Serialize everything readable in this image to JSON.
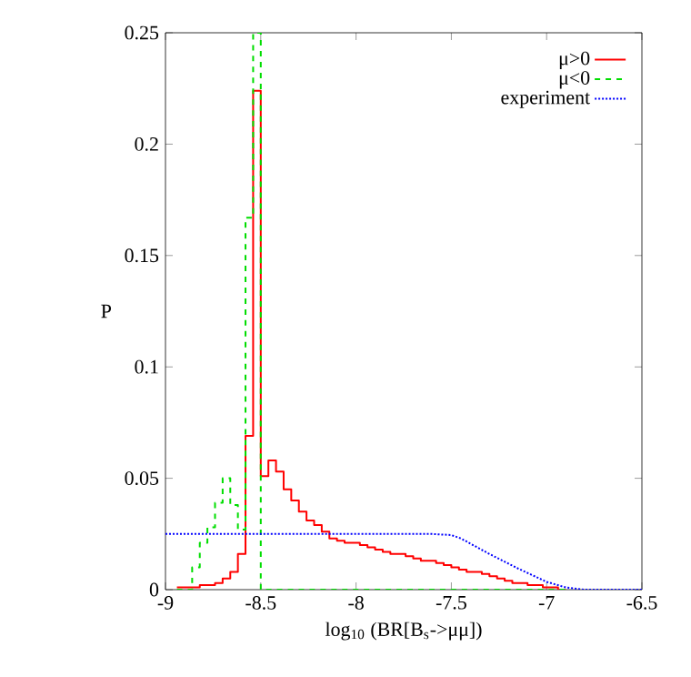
{
  "chart_data": {
    "type": "histogram",
    "xlabel": "log$_{10}$ (BR[B$_{s}$->μμ])",
    "ylabel": "P",
    "xlim": [
      -9,
      -6.5
    ],
    "ylim": [
      0,
      0.25
    ],
    "xticks": [
      -9,
      -8.5,
      -8,
      -7.5,
      -7,
      -6.5
    ],
    "yticks": [
      0,
      0.05,
      0.1,
      0.15,
      0.2,
      0.25
    ],
    "legend": "top right",
    "bins": [
      -8.94,
      -8.9,
      -8.86,
      -8.82,
      -8.78,
      -8.74,
      -8.7,
      -8.66,
      -8.62,
      -8.58,
      -8.54,
      -8.5,
      -8.46,
      -8.42,
      -8.38,
      -8.34,
      -8.3,
      -8.26,
      -8.22,
      -8.18,
      -8.14,
      -8.1,
      -8.06,
      -8.02,
      -7.98,
      -7.94,
      -7.9,
      -7.86,
      -7.82,
      -7.78,
      -7.74,
      -7.7,
      -7.66,
      -7.62,
      -7.58,
      -7.54,
      -7.5,
      -7.46,
      -7.42,
      -7.38,
      -7.34,
      -7.3,
      -7.26,
      -7.22,
      -7.18,
      -7.14,
      -7.1,
      -7.06,
      -7.02,
      -6.98,
      -6.94,
      -6.9
    ],
    "series": [
      {
        "name": "μ>0",
        "color": "#ff0000",
        "line_style": "solid",
        "values": [
          0.001,
          0.001,
          0.001,
          0.002,
          0.002,
          0.003,
          0.005,
          0.008,
          0.016,
          0.069,
          0.224,
          0.051,
          0.058,
          0.053,
          0.045,
          0.04,
          0.035,
          0.031,
          0.029,
          0.026,
          0.023,
          0.022,
          0.021,
          0.021,
          0.02,
          0.019,
          0.018,
          0.017,
          0.016,
          0.016,
          0.015,
          0.014,
          0.013,
          0.013,
          0.012,
          0.011,
          0.01,
          0.009,
          0.008,
          0.008,
          0.007,
          0.006,
          0.005,
          0.004,
          0.003,
          0.003,
          0.002,
          0.002,
          0.001,
          0.001,
          0
        ]
      },
      {
        "name": "μ<0",
        "color": "#00dd00",
        "line_style": "dashed",
        "values": [
          0,
          0,
          0.01,
          0.021,
          0.028,
          0.039,
          0.05,
          0.038,
          0.027,
          0.167,
          0.25,
          0,
          0,
          0,
          0,
          0,
          0,
          0,
          0,
          0,
          0,
          0,
          0,
          0,
          0,
          0,
          0,
          0,
          0,
          0,
          0,
          0,
          0,
          0,
          0,
          0,
          0,
          0,
          0,
          0,
          0,
          0,
          0,
          0,
          0,
          0,
          0,
          0,
          0,
          0,
          0
        ]
      },
      {
        "name": "experiment",
        "type": "line",
        "color": "#0000ff",
        "line_style": "dotted",
        "x": [
          -9,
          -7.6,
          -7.5,
          -7.45,
          -7.3,
          -7.15,
          -7.0,
          -6.9,
          -6.8,
          -6.5
        ],
        "values": [
          0.025,
          0.025,
          0.0245,
          0.023,
          0.016,
          0.0095,
          0.0035,
          0.001,
          0,
          0
        ]
      }
    ]
  }
}
